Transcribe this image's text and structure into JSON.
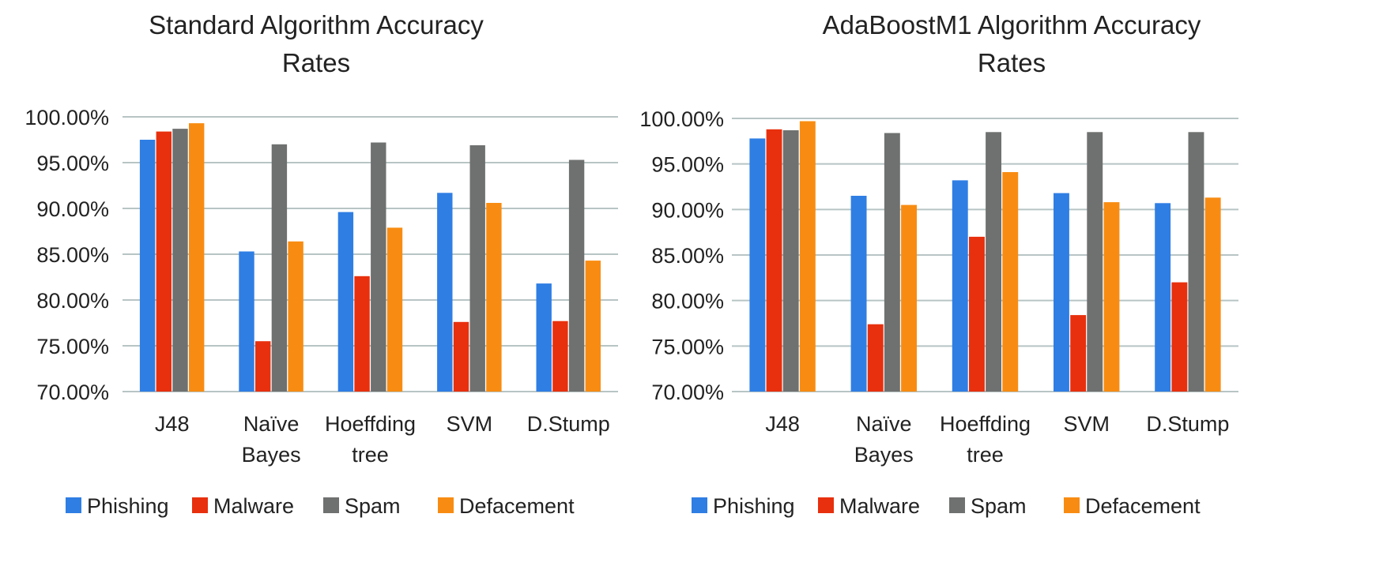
{
  "chart_data": [
    {
      "type": "bar",
      "title_lines": [
        "Standard Algorithm Accuracy",
        "Rates"
      ],
      "categories": [
        [
          "J48"
        ],
        [
          "Naïve",
          "Bayes"
        ],
        [
          "Hoeffding",
          "tree"
        ],
        [
          "SVM"
        ],
        [
          "D.Stump"
        ]
      ],
      "series": [
        {
          "name": "Phishing",
          "color": "#2f7ee4",
          "values": [
            97.5,
            85.3,
            89.6,
            91.7,
            81.8
          ]
        },
        {
          "name": "Malware",
          "color": "#e8300e",
          "values": [
            98.4,
            75.5,
            82.6,
            77.6,
            77.7
          ]
        },
        {
          "name": "Spam",
          "color": "#6e716f",
          "values": [
            98.7,
            97.0,
            97.2,
            96.9,
            95.3
          ]
        },
        {
          "name": "Defacement",
          "color": "#f88c12",
          "values": [
            99.3,
            86.4,
            87.9,
            90.6,
            84.3
          ]
        }
      ],
      "ylim": [
        70,
        100
      ],
      "yticks": [
        "100.00%",
        "95.00%",
        "90.00%",
        "85.00%",
        "80.00%",
        "75.00%",
        "70.00%"
      ],
      "ytick_values": [
        100,
        95,
        90,
        85,
        80,
        75,
        70
      ],
      "legend": "bottom",
      "grid": true
    },
    {
      "type": "bar",
      "title_lines": [
        "AdaBoostM1 Algorithm Accuracy",
        "Rates"
      ],
      "categories": [
        [
          "J48"
        ],
        [
          "Naïve",
          "Bayes"
        ],
        [
          "Hoeffding",
          "tree"
        ],
        [
          "SVM"
        ],
        [
          "D.Stump"
        ]
      ],
      "series": [
        {
          "name": "Phishing",
          "color": "#2f7ee4",
          "values": [
            97.8,
            91.5,
            93.2,
            91.8,
            90.7
          ]
        },
        {
          "name": "Malware",
          "color": "#e8300e",
          "values": [
            98.8,
            77.4,
            87.0,
            78.4,
            82.0
          ]
        },
        {
          "name": "Spam",
          "color": "#6e716f",
          "values": [
            98.7,
            98.4,
            98.5,
            98.5,
            98.5
          ]
        },
        {
          "name": "Defacement",
          "color": "#f88c12",
          "values": [
            99.7,
            90.5,
            94.1,
            90.8,
            91.3
          ]
        }
      ],
      "ylim": [
        70,
        100
      ],
      "yticks": [
        "100.00%",
        "95.00%",
        "90.00%",
        "85.00%",
        "80.00%",
        "75.00%",
        "70.00%"
      ],
      "ytick_values": [
        100,
        95,
        90,
        85,
        80,
        75,
        70
      ],
      "legend": "bottom",
      "grid": true
    }
  ]
}
